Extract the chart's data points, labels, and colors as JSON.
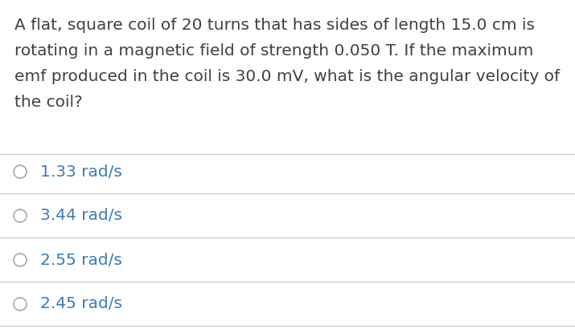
{
  "question_lines": [
    "A flat, square coil of 20 turns that has sides of length 15.0 cm is",
    "rotating in a magnetic field of strength 0.050 T. If the maximum",
    "emf produced in the coil is 30.0 mV, what is the angular velocity of",
    "the coil?"
  ],
  "choices": [
    "1.33 rad/s",
    "3.44 rad/s",
    "2.55 rad/s",
    "2.45 rad/s"
  ],
  "background_color": "#ffffff",
  "text_color": "#3d7ab5",
  "question_color": "#404040",
  "line_color": "#c8c8c8",
  "question_fontsize": 14.5,
  "choice_fontsize": 14.5,
  "circle_color": "#aaaaaa",
  "fig_width": 7.15,
  "fig_height": 4.15,
  "dpi": 100
}
